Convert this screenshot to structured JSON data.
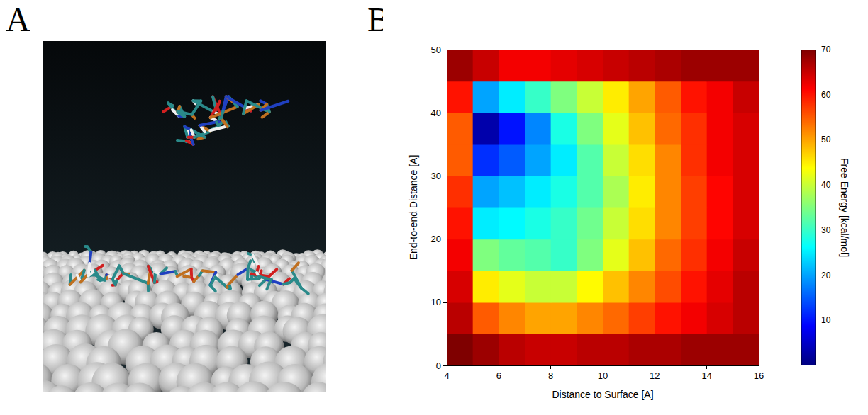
{
  "panel_labels": [
    "A",
    "B"
  ],
  "chart_data": {
    "type": "heatmap",
    "x_label": "Distance to Surface [A]",
    "y_label": "End-to-end Distance [A]",
    "colorbar_label": "Free Energy [kcal/mol]",
    "x": [
      4.5,
      5.5,
      6.5,
      7.5,
      8.5,
      9.5,
      10.5,
      11.5,
      12.5,
      13.5,
      14.5,
      15.5
    ],
    "y": [
      2.5,
      7.5,
      12.5,
      17.5,
      22.5,
      27.5,
      32.5,
      37.5,
      42.5,
      47.5
    ],
    "cells": [
      [
        70,
        68,
        66,
        65,
        65,
        66,
        66,
        67,
        67,
        68,
        68,
        68
      ],
      [
        66,
        55,
        52,
        50,
        50,
        52,
        54,
        57,
        60,
        62,
        64,
        66
      ],
      [
        64,
        45,
        42,
        40,
        40,
        44,
        48,
        52,
        56,
        60,
        63,
        66
      ],
      [
        62,
        35,
        33,
        32,
        30,
        35,
        42,
        48,
        54,
        58,
        62,
        65
      ],
      [
        60,
        25,
        26,
        28,
        30,
        34,
        40,
        46,
        52,
        57,
        61,
        64
      ],
      [
        58,
        20,
        22,
        25,
        28,
        32,
        38,
        45,
        52,
        57,
        61,
        64
      ],
      [
        55,
        12,
        15,
        20,
        25,
        32,
        40,
        46,
        52,
        58,
        62,
        64
      ],
      [
        55,
        3,
        10,
        18,
        28,
        35,
        42,
        48,
        54,
        58,
        62,
        64
      ],
      [
        60,
        20,
        25,
        30,
        35,
        40,
        45,
        50,
        55,
        60,
        62,
        65
      ],
      [
        68,
        65,
        62,
        62,
        63,
        64,
        65,
        66,
        67,
        68,
        68,
        68
      ]
    ],
    "xlim": [
      4,
      16
    ],
    "xticks": [
      4,
      6,
      8,
      10,
      12,
      14,
      16
    ],
    "ylim": [
      0,
      50
    ],
    "yticks": [
      0,
      10,
      20,
      30,
      40,
      50
    ],
    "colorbar_range": [
      0,
      70
    ],
    "colorbar_ticks": [
      10,
      20,
      30,
      40,
      50,
      60,
      70
    ]
  }
}
